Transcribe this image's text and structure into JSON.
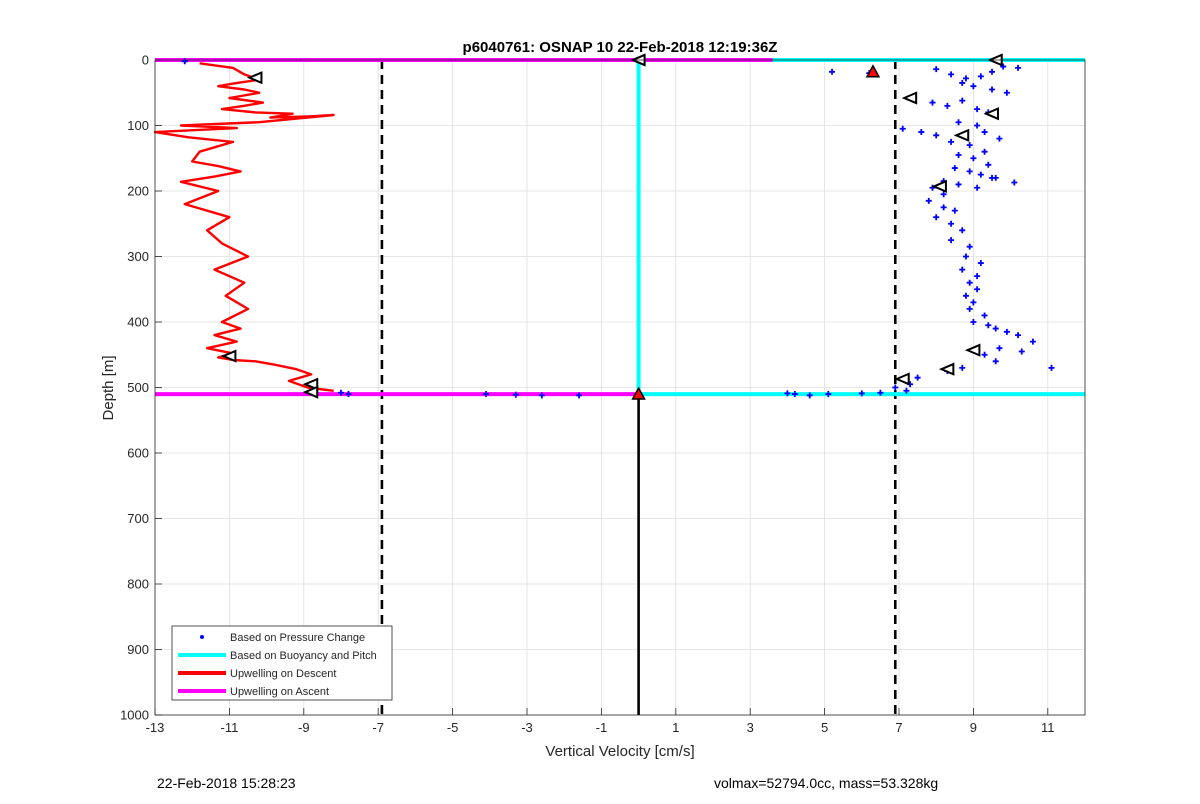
{
  "chart_data": {
    "type": "scatter",
    "title": "p6040761: OSNAP 10 22-Feb-2018 12:19:36Z",
    "xlabel": "Vertical Velocity [cm/s]",
    "ylabel": "Depth [m]",
    "xlim": [
      -13,
      12
    ],
    "ylim": [
      0,
      1000
    ],
    "y_reversed": true,
    "grid": true,
    "x_ticks": [
      -13,
      -11,
      -9,
      -7,
      -5,
      -3,
      -1,
      1,
      3,
      5,
      7,
      9,
      11
    ],
    "y_ticks": [
      0,
      100,
      200,
      300,
      400,
      500,
      600,
      700,
      800,
      900,
      1000
    ],
    "legend_position": "bottom-left",
    "legend": [
      {
        "label": "Based on Pressure Change",
        "color": "#0000ff",
        "style": "dot"
      },
      {
        "label": "Based on Buoyancy and Pitch",
        "color": "#00ffff",
        "style": "line"
      },
      {
        "label": "Upwelling on Descent",
        "color": "#ff0000",
        "style": "line"
      },
      {
        "label": "Upwelling on Ascent",
        "color": "#ff00ff",
        "style": "line"
      }
    ],
    "reference_lines": [
      {
        "x": -6.9,
        "style": "dashed",
        "color": "#000000"
      },
      {
        "x": 6.9,
        "style": "dashed",
        "color": "#000000"
      },
      {
        "x": 0,
        "y_range": [
          510,
          1000
        ],
        "style": "solid",
        "color": "#000000"
      }
    ],
    "series": {
      "buoyancy_pitch": {
        "color": "#00ffff",
        "x": [
          12,
          0,
          0,
          0,
          12
        ],
        "y": [
          0,
          0,
          255,
          510,
          510
        ]
      },
      "ascent_upwelling": {
        "color": "#ff00ff",
        "segments": [
          {
            "x": [
              -13,
              3.6
            ],
            "y": [
              0,
              0
            ]
          },
          {
            "x": [
              -13,
              0
            ],
            "y": [
              510,
              510
            ]
          }
        ]
      },
      "descent_upwelling": {
        "color": "#ff0000",
        "x": [
          -11.8,
          -10.9,
          -10.6,
          -10.2,
          -10.9,
          -11.3,
          -10.6,
          -10.2,
          -11.0,
          -10.1,
          -10.6,
          -11.2,
          -10.3,
          -9.3,
          -9.9,
          -8.8,
          -8.2,
          -10.2,
          -12.3,
          -10.8,
          -13.0,
          -12.1,
          -10.9,
          -11.8,
          -12.0,
          -11.3,
          -10.7,
          -11.4,
          -12.3,
          -11.3,
          -12.2,
          -11.0,
          -11.6,
          -11.2,
          -10.5,
          -11.4,
          -10.6,
          -11.1,
          -10.5,
          -11.2,
          -10.7,
          -11.4,
          -10.8,
          -11.6,
          -10.9,
          -11.3,
          -10.9,
          -10.3,
          -9.8,
          -9.2,
          -8.8,
          -9.4,
          -8.9,
          -8.2
        ],
        "y": [
          5,
          12,
          22,
          30,
          36,
          40,
          45,
          50,
          58,
          65,
          70,
          75,
          80,
          82,
          88,
          86,
          84,
          95,
          100,
          104,
          110,
          118,
          125,
          140,
          155,
          162,
          170,
          178,
          186,
          200,
          220,
          240,
          260,
          280,
          300,
          320,
          340,
          360,
          380,
          400,
          410,
          420,
          430,
          440,
          448,
          454,
          458,
          460,
          465,
          472,
          480,
          490,
          500,
          505
        ]
      },
      "pressure_change": {
        "color": "#0000ff",
        "x": [
          -12.2,
          5.2,
          6.2,
          8.0,
          8.4,
          8.8,
          9.2,
          9.5,
          9.8,
          10.2,
          8.7,
          9.0,
          9.5,
          9.9,
          7.4,
          7.9,
          8.3,
          8.7,
          9.1,
          9.4,
          8.6,
          9.1,
          9.3,
          9.7,
          7.1,
          7.6,
          8.0,
          8.4,
          8.9,
          9.3,
          8.6,
          9.0,
          9.4,
          8.5,
          8.9,
          9.2,
          9.6,
          8.2,
          8.6,
          9.1,
          9.5,
          10.1,
          7.9,
          8.2,
          7.8,
          8.2,
          8.5,
          8.0,
          8.4,
          8.7,
          8.4,
          8.9,
          8.8,
          9.2,
          8.7,
          9.1,
          8.9,
          9.1,
          8.8,
          9.0,
          8.9,
          9.3,
          9.0,
          9.4,
          9.6,
          9.9,
          10.2,
          10.6,
          9.7,
          10.3,
          11.1,
          9.3,
          9.6,
          8.7,
          8.3,
          7.5,
          7.3,
          6.9,
          7.2,
          6.5,
          6.0,
          5.1,
          4.6,
          4.2,
          4.0,
          -1.6,
          -2.6,
          -3.3,
          -4.1,
          -7.8,
          -8.0
        ],
        "y": [
          2,
          18,
          20,
          14,
          22,
          28,
          25,
          18,
          10,
          12,
          35,
          40,
          45,
          50,
          58,
          65,
          70,
          62,
          75,
          80,
          95,
          100,
          110,
          120,
          105,
          110,
          115,
          125,
          130,
          140,
          145,
          150,
          160,
          165,
          170,
          175,
          180,
          185,
          190,
          195,
          180,
          187,
          195,
          205,
          215,
          225,
          230,
          240,
          250,
          260,
          275,
          285,
          300,
          310,
          320,
          330,
          340,
          350,
          360,
          370,
          380,
          390,
          400,
          405,
          410,
          415,
          420,
          430,
          440,
          445,
          470,
          450,
          460,
          470,
          475,
          485,
          495,
          500,
          505,
          508,
          509,
          510,
          512,
          510,
          509,
          512,
          512,
          511,
          510,
          510,
          508
        ]
      },
      "markers_descent": {
        "color": "#ff0000",
        "points": [
          [
            6.3,
            18
          ],
          [
            0,
            510
          ]
        ]
      },
      "markers_triangles": {
        "color": "#ffffff",
        "points": [
          [
            -10.3,
            27
          ],
          [
            -11.0,
            452
          ],
          [
            -8.8,
            495
          ],
          [
            -8.8,
            507
          ],
          [
            0,
            0
          ],
          [
            9.6,
            0
          ],
          [
            7.3,
            58
          ],
          [
            9.5,
            82
          ],
          [
            8.7,
            115
          ],
          [
            8.1,
            193
          ],
          [
            9.0,
            443
          ],
          [
            8.3,
            472
          ],
          [
            7.1,
            487
          ]
        ]
      }
    }
  },
  "footer": {
    "left": "22-Feb-2018 15:28:23",
    "right": "volmax=52794.0cc, mass=53.328kg"
  }
}
